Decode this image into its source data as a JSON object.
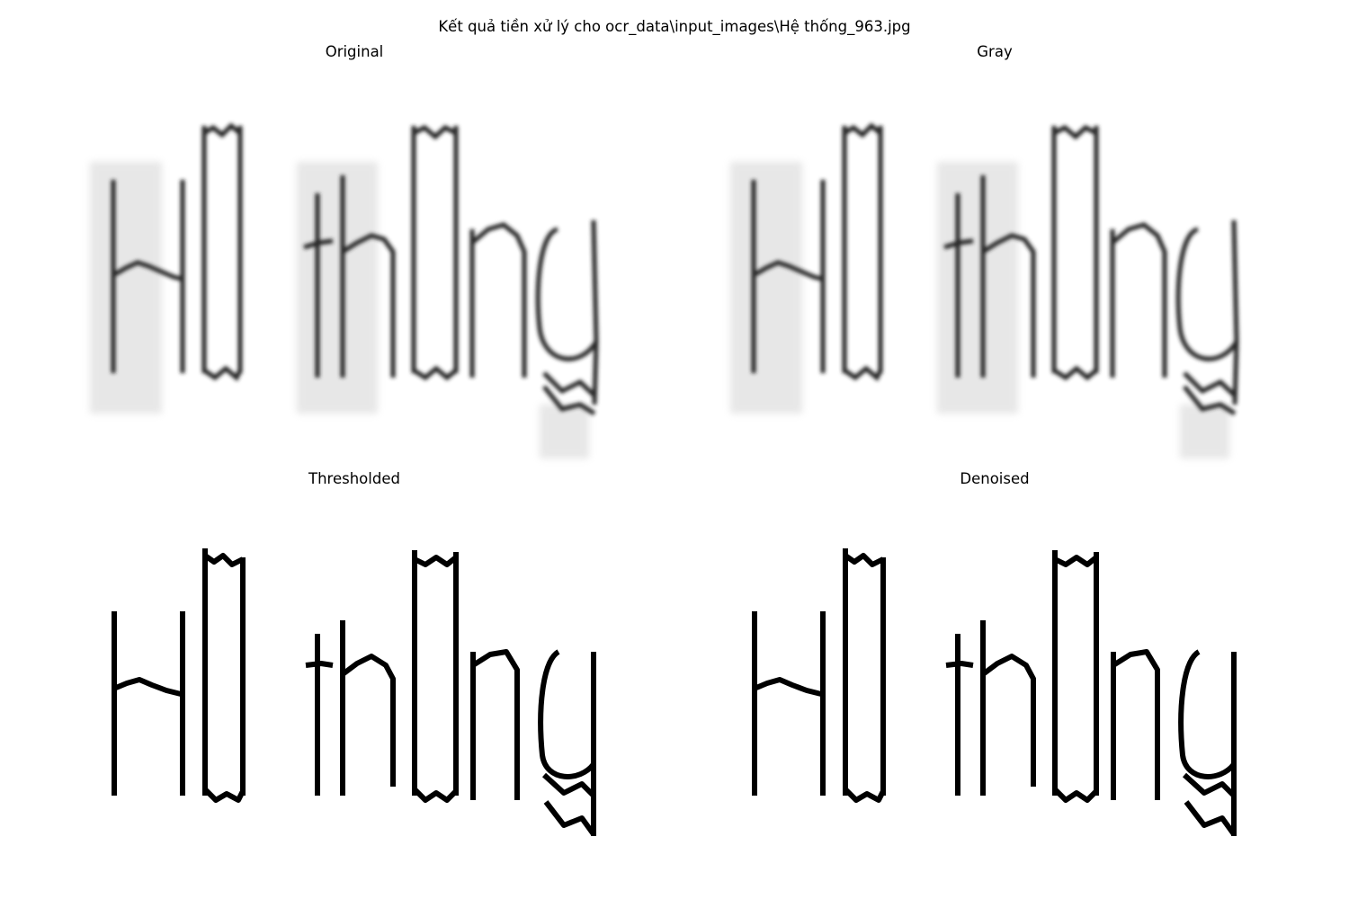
{
  "figure": {
    "suptitle": "Kết quả tiền xử lý cho ocr_data\\input_images\\Hệ thống_963.jpg"
  },
  "panels": [
    {
      "title": "Original",
      "style": "blurred",
      "word": "H□ th□ng"
    },
    {
      "title": "Gray",
      "style": "blurred",
      "word": "H□ th□ng"
    },
    {
      "title": "Thresholded",
      "style": "binary",
      "word": "H□ th□ng"
    },
    {
      "title": "Denoised",
      "style": "binary",
      "word": "H□ th□ng"
    }
  ],
  "colors": {
    "background": "#ffffff",
    "ink": "#000000",
    "blur_ink": "#222222",
    "ghost_ink": "#bbbbbb"
  }
}
